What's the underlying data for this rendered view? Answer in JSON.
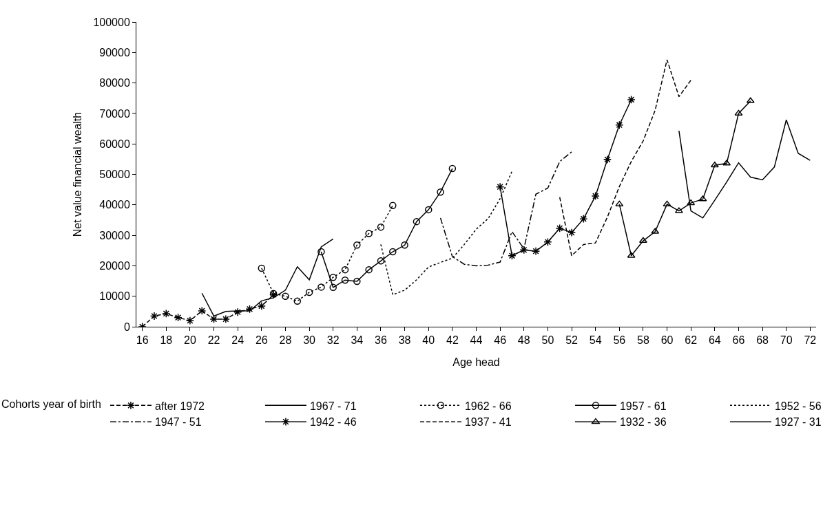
{
  "chart_data": {
    "type": "line",
    "xlabel": "Age head",
    "ylabel": "Net value financial wealth",
    "legend_title": "Cohorts year of birth",
    "legend": "bottom",
    "grid": false,
    "xlim": [
      15.5,
      72.5
    ],
    "xticks": [
      16,
      18,
      20,
      22,
      24,
      26,
      28,
      30,
      32,
      34,
      36,
      38,
      40,
      42,
      44,
      46,
      48,
      50,
      52,
      54,
      56,
      58,
      60,
      62,
      64,
      66,
      68,
      70,
      72
    ],
    "ylim": [
      0,
      100000
    ],
    "yticks": [
      0,
      10000,
      20000,
      30000,
      40000,
      50000,
      60000,
      70000,
      80000,
      90000,
      100000
    ],
    "series": [
      {
        "name": "after 1972",
        "color": "#000000",
        "line_style": "dashed",
        "marker": "cross",
        "x": [
          16,
          17,
          18,
          19,
          20,
          21,
          22,
          23,
          24,
          25,
          26,
          27
        ],
        "values": [
          0,
          3500,
          4300,
          3000,
          2000,
          5200,
          2500,
          2500,
          4800,
          5800,
          6800,
          10500
        ]
      },
      {
        "name": "1967 - 71",
        "color": "#000000",
        "line_style": "solid",
        "marker": "none",
        "x": [
          21,
          22,
          23,
          24,
          25,
          26,
          27,
          28,
          29,
          30,
          31,
          32
        ],
        "values": [
          11000,
          3500,
          5000,
          5200,
          5200,
          8500,
          9500,
          12000,
          19700,
          15400,
          26200,
          28800
        ]
      },
      {
        "name": "1962 - 66",
        "color": "#000000",
        "line_style": "dotted",
        "marker": "circle",
        "x": [
          26,
          27,
          28,
          29,
          30,
          31,
          32,
          33,
          34,
          35,
          36,
          37
        ],
        "values": [
          19200,
          10900,
          10000,
          8400,
          11300,
          13000,
          16200,
          18700,
          26800,
          30600,
          32700,
          39800
        ]
      },
      {
        "name": "1957 - 61",
        "color": "#000000",
        "line_style": "solid",
        "marker": "circle",
        "x": [
          31,
          32,
          33,
          34,
          35,
          36,
          37,
          38,
          39,
          40,
          41,
          42
        ],
        "values": [
          24600,
          12900,
          15300,
          14900,
          18700,
          21600,
          24600,
          26800,
          34500,
          38400,
          44200,
          51900
        ]
      },
      {
        "name": "1952 - 56",
        "color": "#000000",
        "line_style": "dotted",
        "marker": "none",
        "x": [
          36,
          37,
          38,
          39,
          40,
          41,
          42,
          43,
          44,
          45,
          46,
          47
        ],
        "values": [
          27000,
          10500,
          12000,
          15400,
          19600,
          21100,
          22500,
          27000,
          32000,
          35500,
          42000,
          51000
        ]
      },
      {
        "name": "1947 - 51",
        "color": "#000000",
        "line_style": "dashdot",
        "marker": "none",
        "x": [
          41,
          42,
          43,
          44,
          45,
          46,
          47,
          48,
          49,
          50,
          51,
          52
        ],
        "values": [
          35700,
          23000,
          20500,
          20000,
          20200,
          21200,
          31200,
          25600,
          43500,
          45500,
          54200,
          57400
        ]
      },
      {
        "name": "1942 - 46",
        "color": "#000000",
        "line_style": "solid",
        "marker": "cross",
        "x": [
          46,
          47,
          48,
          49,
          50,
          51,
          52,
          53,
          54,
          55,
          56,
          57
        ],
        "values": [
          45900,
          23300,
          25200,
          24800,
          27800,
          32300,
          30900,
          35400,
          42900,
          54900,
          66200,
          74500
        ]
      },
      {
        "name": "1937 - 41",
        "color": "#000000",
        "line_style": "dashed",
        "marker": "none",
        "x": [
          51,
          52,
          53,
          54,
          55,
          56,
          57,
          58,
          59,
          60,
          61,
          62
        ],
        "values": [
          42500,
          23300,
          27000,
          27500,
          36000,
          46000,
          54200,
          61000,
          71000,
          87600,
          75500,
          80900
        ]
      },
      {
        "name": "1932 - 36",
        "color": "#000000",
        "line_style": "solid",
        "marker": "triangle",
        "x": [
          56,
          57,
          58,
          59,
          60,
          61,
          62,
          63,
          64,
          65,
          66,
          67
        ],
        "values": [
          40200,
          23300,
          28200,
          31200,
          40200,
          38000,
          40600,
          41900,
          53000,
          53600,
          70000,
          74100
        ]
      },
      {
        "name": "1927 - 31",
        "color": "#000000",
        "line_style": "solid",
        "marker": "none",
        "x": [
          61,
          62,
          63,
          64,
          65,
          66,
          67,
          68,
          69,
          70,
          71,
          72
        ],
        "values": [
          64300,
          38000,
          35700,
          41500,
          47500,
          53800,
          49100,
          48200,
          52400,
          67900,
          56900,
          54600
        ]
      }
    ]
  }
}
